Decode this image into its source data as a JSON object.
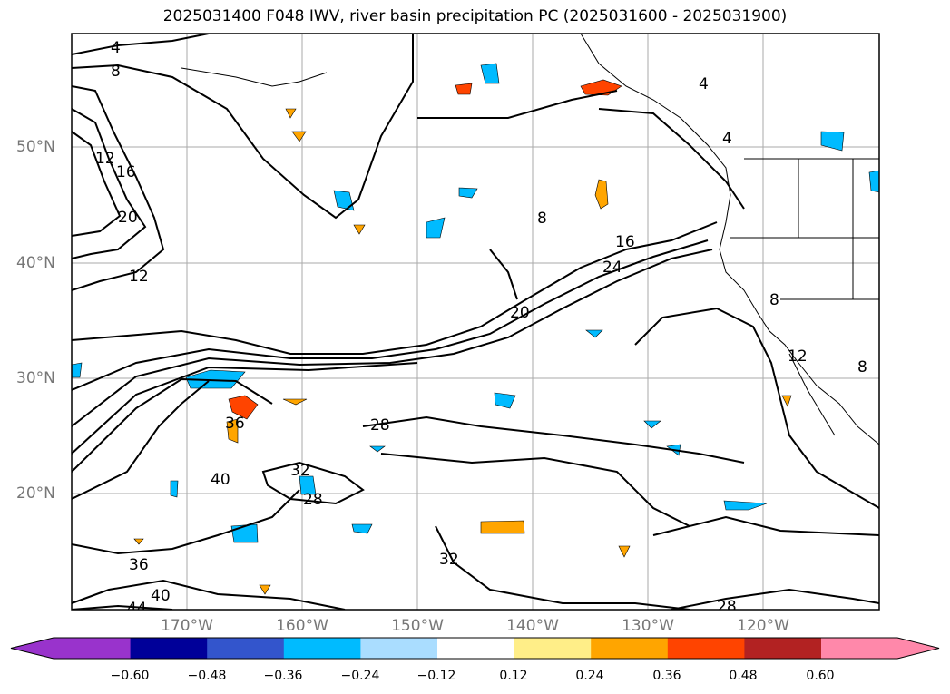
{
  "title": "2025031400 F048 IWV, river basin precipitation PC (2025031600 - 2025031900)",
  "lat_labels": [
    "50°N",
    "40°N",
    "30°N",
    "20°N"
  ],
  "lon_labels": [
    "170°W",
    "160°W",
    "150°W",
    "140°W",
    "130°W",
    "120°W"
  ],
  "contour_labels": [
    "4",
    "8",
    "12",
    "16",
    "20",
    "12",
    "4",
    "4",
    "8",
    "16",
    "24",
    "20",
    "28",
    "32",
    "28",
    "36",
    "40",
    "32",
    "36",
    "40",
    "44",
    "28",
    "12",
    "8",
    "8"
  ],
  "colorbar": {
    "colors": [
      "#9933cc",
      "#000099",
      "#3355cc",
      "#00bbff",
      "#aaddff",
      "#ffffff",
      "#ffee88",
      "#ffa500",
      "#ff4400",
      "#b22222",
      "#ff88aa"
    ],
    "ticks": [
      "−0.60",
      "−0.48",
      "−0.36",
      "−0.24",
      "−0.12",
      "0.12",
      "0.24",
      "0.36",
      "0.48",
      "0.60"
    ]
  }
}
